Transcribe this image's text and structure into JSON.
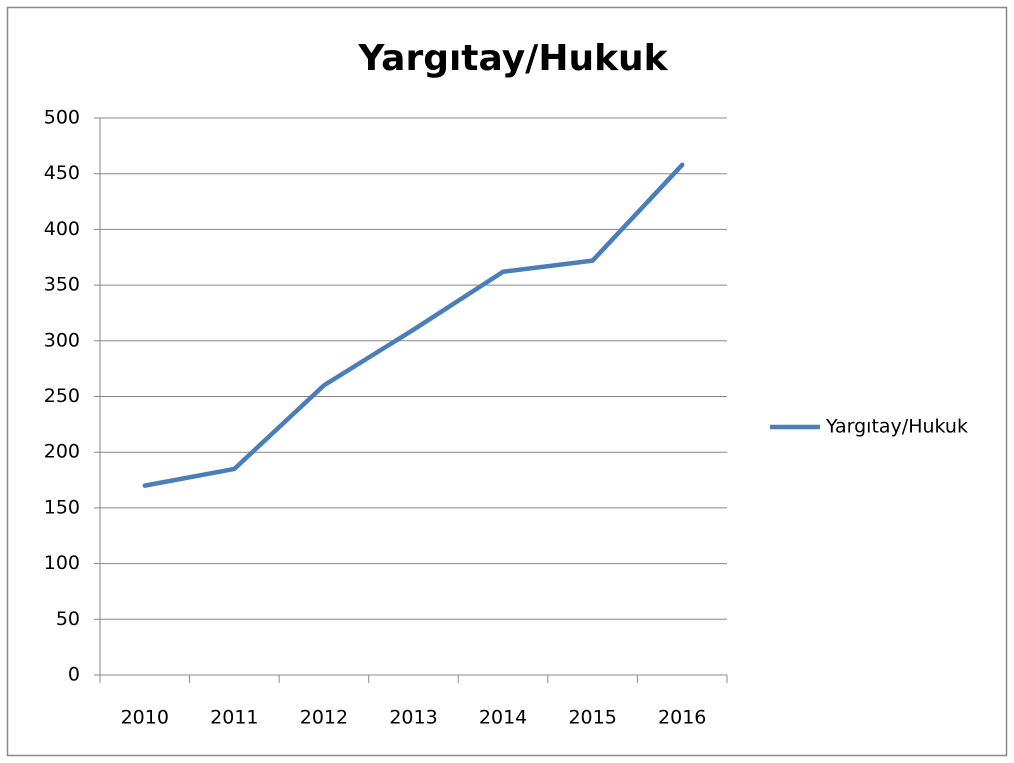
{
  "chart_data": {
    "type": "line",
    "title": "Yargıtay/Hukuk",
    "categories": [
      "2010",
      "2011",
      "2012",
      "2013",
      "2014",
      "2015",
      "2016"
    ],
    "series": [
      {
        "name": "Yargıtay/Hukuk",
        "color": "#4a7ebb",
        "values": [
          170,
          185,
          260,
          310,
          362,
          372,
          458
        ]
      }
    ],
    "ylim": [
      0,
      500
    ],
    "yticks": [
      0,
      50,
      100,
      150,
      200,
      250,
      300,
      350,
      400,
      450,
      500
    ],
    "grid": true,
    "legend": "right"
  }
}
